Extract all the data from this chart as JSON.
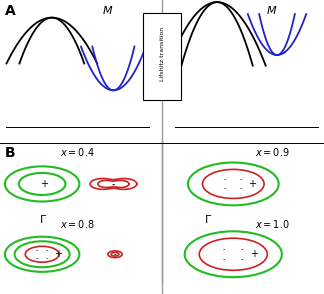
{
  "fig_width": 3.24,
  "fig_height": 2.94,
  "dpi": 100,
  "bg_color": "#ffffff",
  "green_color": "#22bb22",
  "red_color": "#cc2222",
  "black_color": "#000000",
  "blue_color": "#2222cc",
  "gray_color": "#999999",
  "label_A": "A",
  "label_B": "B",
  "lifshitz_text": "Lifshitz transition"
}
